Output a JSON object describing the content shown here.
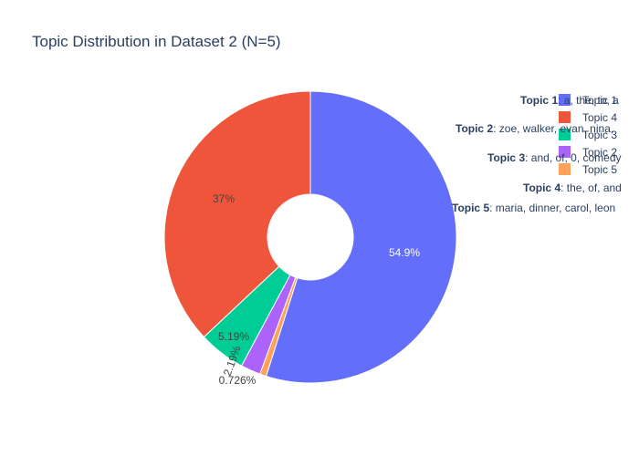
{
  "chart_data": {
    "type": "pie",
    "hole": true,
    "title": "Topic Distribution in Dataset 2 (N=5)",
    "slices": [
      {
        "name": "Topic 1",
        "value": 54.9,
        "label": "54.9%",
        "color": "#636efa",
        "label_color": "#ffffff"
      },
      {
        "name": "Topic 5",
        "value": 0.726,
        "label": "0.726%",
        "color": "#ffa15a",
        "label_color": "#444444"
      },
      {
        "name": "Topic 2",
        "value": 2.19,
        "label": "2.19%",
        "color": "#ab63fa",
        "label_color": "#444444"
      },
      {
        "name": "Topic 3",
        "value": 5.19,
        "label": "5.19%",
        "color": "#00cc96",
        "label_color": "#444444"
      },
      {
        "name": "Topic 4",
        "value": 37.0,
        "label": "37%",
        "color": "#ef553b",
        "label_color": "#444444"
      }
    ],
    "legend": {
      "placement": "top-right",
      "entries": [
        {
          "name": "Topic 1",
          "color": "#636efa"
        },
        {
          "name": "Topic 4",
          "color": "#ef553b"
        },
        {
          "name": "Topic 3",
          "color": "#00cc96"
        },
        {
          "name": "Topic 2",
          "color": "#ab63fa"
        },
        {
          "name": "Topic 5",
          "color": "#ffa15a"
        }
      ]
    },
    "annotations": [
      {
        "bold": "Topic 1",
        "text": ": a, the, to, a"
      },
      {
        "bold": "Topic 2",
        "text": ": zoe, walker, evan, nina,"
      },
      {
        "bold": "Topic 3",
        "text": ": and, of, 0, comedy"
      },
      {
        "bold": "Topic 4",
        "text": ": the, of, and"
      },
      {
        "bold": "Topic 5",
        "text": ": maria, dinner, carol, leon"
      }
    ]
  }
}
